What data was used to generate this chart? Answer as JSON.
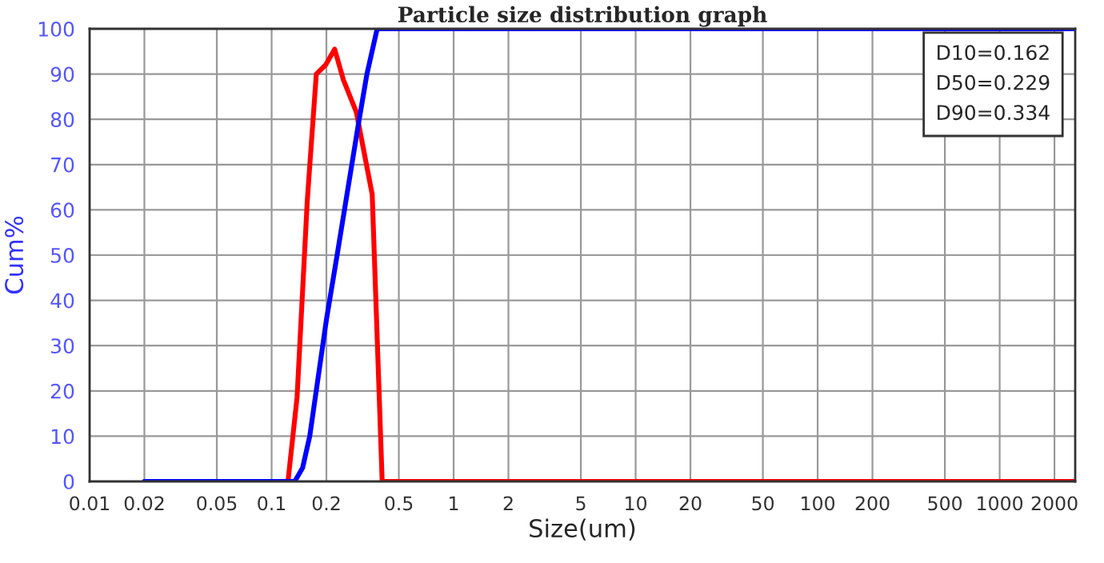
{
  "chart_data": {
    "type": "line",
    "title": "Particle size distribution graph",
    "xlabel": "Size(um)",
    "ylabel": "Cum%",
    "log": "x",
    "grid": true,
    "marker": "none",
    "line_style": "solid",
    "xlim": [
      0.01,
      2600
    ],
    "xticks": [
      0.01,
      0.02,
      0.05,
      0.1,
      0.2,
      0.5,
      1,
      2,
      5,
      10,
      20,
      50,
      100,
      200,
      500,
      1000,
      2000
    ],
    "ylim": [
      0,
      100
    ],
    "yticks": [
      0,
      10,
      20,
      30,
      40,
      50,
      60,
      70,
      80,
      90,
      100
    ],
    "series": [
      {
        "color": "#ff0000",
        "x": [
          0.123,
          0.138,
          0.157,
          0.176,
          0.198,
          0.222,
          0.248,
          0.292,
          0.357,
          0.405,
          2600
        ],
        "values": [
          0,
          18.6,
          62,
          90,
          92,
          95.5,
          88.7,
          81.6,
          63.4,
          0,
          0
        ]
      },
      {
        "color": "#0000ff",
        "x": [
          0.02,
          0.134,
          0.148,
          0.162,
          0.2,
          0.229,
          0.3,
          0.334,
          0.38,
          2600
        ],
        "values": [
          0,
          0,
          3,
          10,
          35.7,
          50,
          79,
          90,
          100,
          100
        ]
      }
    ],
    "annotations": [
      "D10=0.162",
      "D50=0.229",
      "D90=0.334"
    ]
  }
}
